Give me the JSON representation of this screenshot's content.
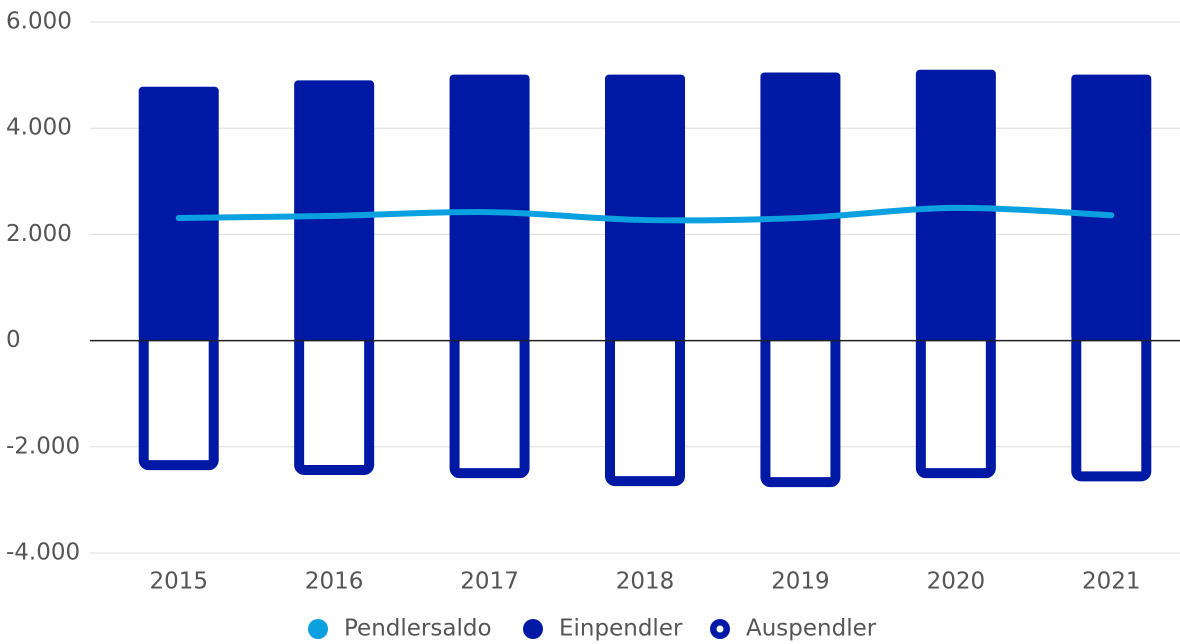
{
  "chart_data": {
    "type": "bar",
    "categories": [
      "2015",
      "2016",
      "2017",
      "2018",
      "2019",
      "2020",
      "2021"
    ],
    "series": [
      {
        "name": "Pendlersaldo",
        "type": "line",
        "color": "#0ba0df",
        "values": [
          2310,
          2350,
          2420,
          2270,
          2310,
          2500,
          2360
        ]
      },
      {
        "name": "Einpendler",
        "type": "bar",
        "color": "#0019a5",
        "values": [
          4780,
          4900,
          5010,
          5010,
          5050,
          5100,
          5010
        ]
      },
      {
        "name": "Auspendler",
        "type": "outline-bar",
        "color": "#0019a5",
        "values": [
          -2440,
          -2530,
          -2590,
          -2740,
          -2760,
          -2590,
          -2650
        ]
      }
    ],
    "ylim": [
      -4000,
      6000
    ],
    "yticks": [
      {
        "value": -4000,
        "label": "-4.000"
      },
      {
        "value": -2000,
        "label": "-2.000"
      },
      0,
      {
        "value": 2000,
        "label": "2.000"
      },
      {
        "value": 4000,
        "label": "4.000"
      },
      {
        "value": 6000,
        "label": "6.000"
      }
    ],
    "grid": true,
    "legend": "bottom"
  }
}
